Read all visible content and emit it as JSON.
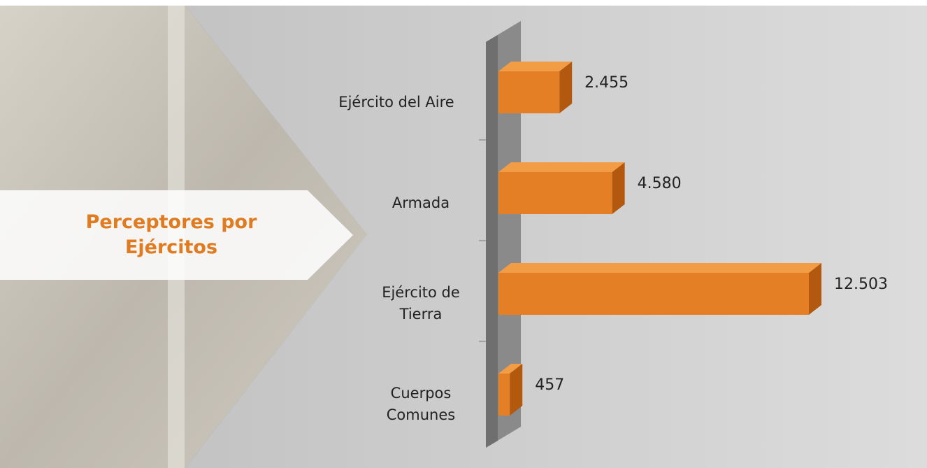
{
  "chart_data": {
    "type": "bar",
    "orientation": "horizontal",
    "title": "Perceptores por Ejércitos",
    "categories": [
      "Ejército del Aire",
      "Armada",
      "Ejército de Tierra",
      "Cuerpos Comunes"
    ],
    "values": [
      2455,
      4580,
      12503,
      457
    ],
    "value_labels": [
      "2.455",
      "4.580",
      "12.503",
      "457"
    ],
    "color": "#e57f25"
  }
}
